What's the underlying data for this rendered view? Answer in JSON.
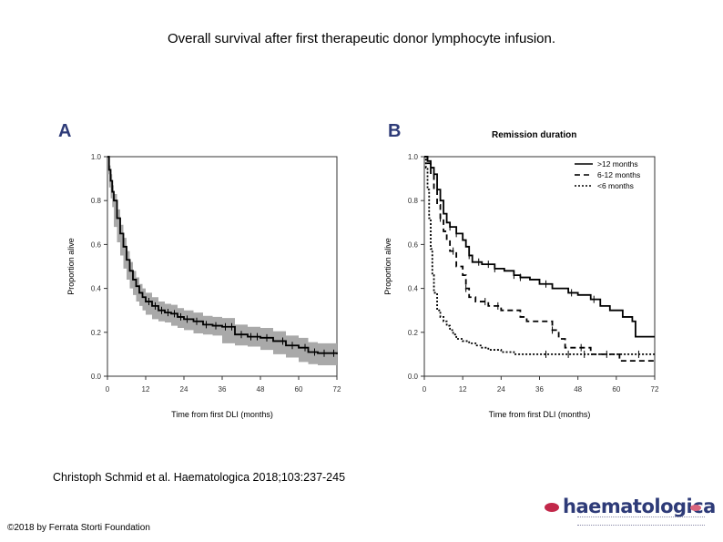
{
  "page": {
    "title": "Overall survival after first therapeutic donor lymphocyte infusion.",
    "citation": "Christoph Schmid et al. Haematologica 2018;103:237-245",
    "copyright": "©2018 by Ferrata Storti Foundation",
    "logo_text": "haematologica"
  },
  "chart_data": [
    {
      "type": "line",
      "panel_label": "A",
      "title": "",
      "xlabel": "Time from first DLI (months)",
      "ylabel": "Proportion alive",
      "xlim": [
        0,
        72
      ],
      "ylim": [
        0,
        1.0
      ],
      "xticks": [
        "0",
        "12",
        "24",
        "36",
        "48",
        "60",
        "72"
      ],
      "yticks": [
        "0.0",
        "0.2",
        "0.4",
        "0.6",
        "0.8",
        "1.0"
      ],
      "series": [
        {
          "name": "Overall survival",
          "x": [
            0,
            0.5,
            1,
            1.5,
            2,
            3,
            4,
            5,
            6,
            7,
            8,
            9,
            10,
            11,
            12,
            14,
            16,
            18,
            20,
            22,
            24,
            27,
            30,
            33,
            36,
            40,
            44,
            48,
            52,
            56,
            60,
            63,
            66,
            72
          ],
          "y": [
            1.0,
            0.94,
            0.89,
            0.84,
            0.8,
            0.72,
            0.65,
            0.59,
            0.53,
            0.48,
            0.44,
            0.41,
            0.38,
            0.36,
            0.34,
            0.32,
            0.3,
            0.29,
            0.285,
            0.27,
            0.26,
            0.25,
            0.235,
            0.23,
            0.225,
            0.19,
            0.18,
            0.175,
            0.16,
            0.14,
            0.13,
            0.11,
            0.105,
            0.1
          ],
          "ci_lower": [
            1.0,
            0.92,
            0.86,
            0.81,
            0.77,
            0.68,
            0.61,
            0.55,
            0.49,
            0.44,
            0.4,
            0.37,
            0.34,
            0.32,
            0.3,
            0.28,
            0.26,
            0.25,
            0.245,
            0.23,
            0.22,
            0.21,
            0.195,
            0.19,
            0.185,
            0.15,
            0.14,
            0.135,
            0.12,
            0.1,
            0.085,
            0.065,
            0.055,
            0.05
          ],
          "ci_upper": [
            1.0,
            0.96,
            0.92,
            0.87,
            0.83,
            0.76,
            0.69,
            0.63,
            0.57,
            0.52,
            0.48,
            0.45,
            0.42,
            0.4,
            0.38,
            0.36,
            0.34,
            0.33,
            0.325,
            0.31,
            0.3,
            0.29,
            0.275,
            0.27,
            0.265,
            0.235,
            0.225,
            0.22,
            0.205,
            0.185,
            0.175,
            0.155,
            0.15,
            0.145
          ],
          "censor_x": [
            13,
            15,
            17,
            19,
            21,
            23,
            25,
            28,
            31,
            34,
            37,
            39,
            42,
            45,
            47,
            50,
            55,
            58,
            62,
            65,
            68,
            71
          ]
        }
      ]
    },
    {
      "type": "line",
      "panel_label": "B",
      "title": "Remission duration",
      "xlabel": "Time from first DLI (months)",
      "ylabel": "Proportion alive",
      "xlim": [
        0,
        72
      ],
      "ylim": [
        0,
        1.0
      ],
      "xticks": [
        "0",
        "12",
        "24",
        "36",
        "48",
        "60",
        "72"
      ],
      "yticks": [
        "0.0",
        "0.2",
        "0.4",
        "0.6",
        "0.8",
        "1.0"
      ],
      "legend_position": "top-right",
      "series": [
        {
          "name": ">12 months",
          "style": "solid",
          "x": [
            0,
            1,
            2,
            3,
            4,
            5,
            6,
            7,
            8,
            10,
            12,
            13,
            14,
            15,
            16,
            18,
            20,
            22,
            25,
            28,
            30,
            33,
            36,
            40,
            45,
            48,
            52,
            55,
            58,
            62,
            65,
            66,
            72
          ],
          "y": [
            1.0,
            0.98,
            0.95,
            0.92,
            0.85,
            0.8,
            0.74,
            0.7,
            0.68,
            0.65,
            0.62,
            0.59,
            0.55,
            0.52,
            0.52,
            0.51,
            0.51,
            0.49,
            0.48,
            0.46,
            0.45,
            0.44,
            0.42,
            0.4,
            0.38,
            0.37,
            0.35,
            0.32,
            0.3,
            0.27,
            0.25,
            0.18,
            0.18
          ],
          "censor_x": [
            8,
            10,
            14,
            17,
            20,
            22,
            28,
            30,
            38,
            46,
            53
          ]
        },
        {
          "name": "6-12 months",
          "style": "dashed",
          "x": [
            0,
            1,
            2,
            3,
            4,
            5,
            6,
            7,
            8,
            10,
            12,
            13,
            14,
            16,
            18,
            20,
            24,
            26,
            30,
            32,
            36,
            40,
            42,
            44,
            46,
            50,
            52,
            60,
            61,
            72
          ],
          "y": [
            1.0,
            0.97,
            0.92,
            0.85,
            0.78,
            0.72,
            0.66,
            0.62,
            0.57,
            0.5,
            0.46,
            0.4,
            0.36,
            0.34,
            0.34,
            0.32,
            0.3,
            0.3,
            0.27,
            0.25,
            0.25,
            0.21,
            0.17,
            0.13,
            0.13,
            0.13,
            0.1,
            0.1,
            0.07,
            0.07
          ],
          "censor_x": [
            5,
            9,
            13,
            19,
            23,
            40,
            49
          ]
        },
        {
          "name": "<6 months",
          "style": "dotted",
          "x": [
            0,
            0.5,
            1,
            1.5,
            2,
            2.5,
            3,
            4,
            5,
            6,
            7,
            8,
            9,
            10,
            12,
            14,
            16,
            18,
            20,
            22,
            24,
            26,
            28,
            30,
            36,
            40,
            42,
            48,
            60,
            72
          ],
          "y": [
            1.0,
            0.95,
            0.85,
            0.72,
            0.58,
            0.46,
            0.38,
            0.3,
            0.27,
            0.25,
            0.23,
            0.21,
            0.19,
            0.17,
            0.16,
            0.15,
            0.14,
            0.13,
            0.12,
            0.12,
            0.11,
            0.11,
            0.1,
            0.1,
            0.1,
            0.1,
            0.1,
            0.1,
            0.1,
            0.1
          ],
          "censor_x": [
            38,
            45,
            50,
            57,
            67
          ]
        }
      ]
    }
  ]
}
